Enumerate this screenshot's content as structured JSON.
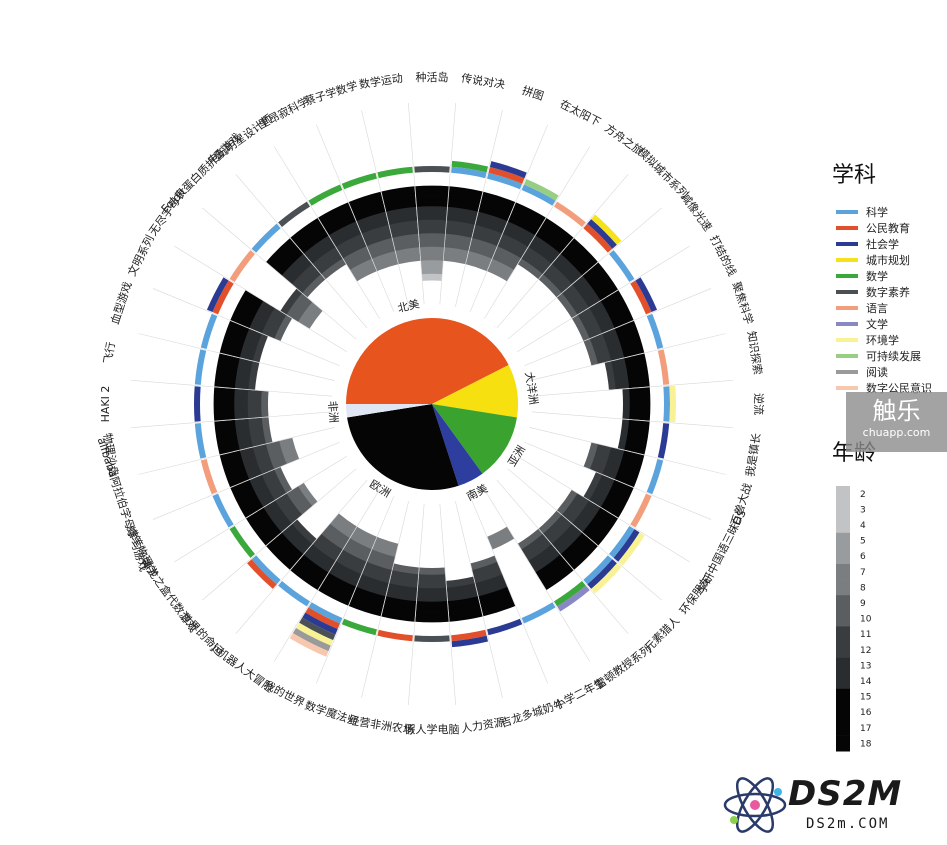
{
  "chart_data": {
    "type": "radial",
    "games": [
      {
        "label": "传说对决",
        "age_from": 7,
        "age_to": 18,
        "subjects": [
          "科学",
          "数学"
        ]
      },
      {
        "label": "拼图",
        "age_from": 7,
        "age_to": 18,
        "subjects": [
          "科学",
          "公民教育",
          "社会学"
        ]
      },
      {
        "label": "在太阳下",
        "age_from": 7,
        "age_to": 18,
        "subjects": [
          "科学",
          "可持续发展"
        ]
      },
      {
        "label": "方舟之旅",
        "age_from": 10,
        "age_to": 18,
        "subjects": [
          "语言"
        ]
      },
      {
        "label": "模拟城市系列",
        "age_from": 10,
        "age_to": 18,
        "subjects": [
          "公民教育",
          "社会学",
          "城市规划"
        ]
      },
      {
        "label": "减像光速",
        "age_from": 10,
        "age_to": 18,
        "subjects": [
          "科学"
        ]
      },
      {
        "label": "打结的线",
        "age_from": 10,
        "age_to": 18,
        "subjects": [
          "公民教育",
          "社会学"
        ]
      },
      {
        "label": "聚焦科学",
        "age_from": 10,
        "age_to": 18,
        "subjects": [
          "科学"
        ]
      },
      {
        "label": "知识探索",
        "age_from": 12,
        "age_to": 18,
        "subjects": [
          "语言"
        ]
      },
      {
        "label": "逆流",
        "age_from": 14,
        "age_to": 18,
        "subjects": [
          "科学",
          "环境学"
        ]
      },
      {
        "label": "我是镇长",
        "age_from": 14,
        "age_to": 18,
        "subjects": [
          "社会学"
        ]
      },
      {
        "label": "百兽大战",
        "age_from": 10,
        "age_to": 18,
        "subjects": [
          "科学"
        ]
      },
      {
        "label": "学研中国语三昧DS",
        "age_from": 12,
        "age_to": 18,
        "subjects": [
          "语言"
        ]
      },
      {
        "label": "环保朋友",
        "age_from": 10,
        "age_to": 18,
        "subjects": [
          "科学",
          "社会学",
          "环境学"
        ]
      },
      {
        "label": "元素猎人",
        "age_from": 10,
        "age_to": 18,
        "subjects": [
          "科学",
          "社会学",
          "环境学"
        ]
      },
      {
        "label": "雷顿教授系列",
        "age_from": 10,
        "age_to": 18,
        "subjects": [
          "数学",
          "文学"
        ]
      },
      {
        "label": "小学二年生",
        "age_from": 7,
        "age_to": 9,
        "subjects": [
          "科学"
        ]
      },
      {
        "label": "吉龙多城奶牛",
        "age_from": 10,
        "age_to": 18,
        "subjects": [
          "社会学"
        ]
      },
      {
        "label": "人力资源",
        "age_from": 12,
        "age_to": 18,
        "subjects": [
          "公民教育",
          "社会学"
        ]
      },
      {
        "label": "假人学电脑",
        "age_from": 10,
        "age_to": 18,
        "subjects": [
          "数字素养"
        ]
      },
      {
        "label": "经营非洲农场",
        "age_from": 10,
        "age_to": 18,
        "subjects": [
          "公民教育"
        ]
      },
      {
        "label": "数学魔法师",
        "age_from": 7,
        "age_to": 18,
        "subjects": [
          "数学"
        ]
      },
      {
        "label": "我的世界",
        "age_from": 7,
        "age_to": 18,
        "subjects": [
          "科学",
          "公民教育",
          "社会学",
          "数字素养",
          "环境学",
          "阅读",
          "数字公民意识"
        ]
      },
      {
        "label": "小机器人大冒险",
        "age_from": 7,
        "age_to": 18,
        "subjects": [
          "科学"
        ]
      },
      {
        "label": "世界的命运",
        "age_from": 12,
        "age_to": 18,
        "subjects": [
          "科学",
          "公民教育"
        ]
      },
      {
        "label": "神龙之盒代数游戏",
        "age_from": 8,
        "age_to": 18,
        "subjects": [
          "数学"
        ]
      },
      {
        "label": "蜡笔物理学",
        "age_from": 10,
        "age_to": 18,
        "subjects": [
          "科学"
        ]
      },
      {
        "label": "alfbaba阿拉伯字母学习游戏",
        "age_from": 7,
        "age_to": 18,
        "subjects": [
          "语言"
        ]
      },
      {
        "label": "物理沙盘",
        "age_from": 10,
        "age_to": 18,
        "subjects": [
          "科学"
        ]
      },
      {
        "label": "HAKI 2",
        "age_from": 10,
        "age_to": 18,
        "subjects": [
          "社会学"
        ]
      },
      {
        "label": "飞行",
        "age_from": 12,
        "age_to": 18,
        "subjects": [
          "科学"
        ]
      },
      {
        "label": "血型游戏",
        "age_from": 12,
        "age_to": 18,
        "subjects": [
          "科学"
        ]
      },
      {
        "label": "文明系列",
        "age_from": 10,
        "age_to": 18,
        "subjects": [
          "公民教育",
          "社会学"
        ]
      },
      {
        "label": "无尽字母表",
        "age_from": 7,
        "age_to": 12,
        "subjects": [
          "语言"
        ]
      },
      {
        "label": "Foldit蛋白质折叠游戏",
        "age_from": 10,
        "age_to": 18,
        "subjects": [
          "科学"
        ]
      },
      {
        "label": "电玩明星设计师",
        "age_from": 10,
        "age_to": 18,
        "subjects": [
          "数字素养"
        ]
      },
      {
        "label": "里昂寂科学",
        "age_from": 7,
        "age_to": 18,
        "subjects": [
          "数学"
        ]
      },
      {
        "label": "蔡子学数学",
        "age_from": 7,
        "age_to": 18,
        "subjects": [
          "数学"
        ]
      },
      {
        "label": "数学运动",
        "age_from": 7,
        "age_to": 18,
        "subjects": [
          "数学"
        ]
      },
      {
        "label": "种活岛",
        "age_from": 4,
        "age_to": 18,
        "subjects": [
          "数字素养"
        ]
      }
    ],
    "regions": [
      {
        "label": "北美",
        "value": 17,
        "color": "#e8541e"
      },
      {
        "label": "大洋洲",
        "value": 4,
        "color": "#f7e00f"
      },
      {
        "label": "亚洲",
        "value": 5,
        "color": "#3aa32f"
      },
      {
        "label": "南美",
        "value": 2,
        "color": "#2d3e9e"
      },
      {
        "label": "欧洲",
        "value": 11,
        "color": "#050505"
      },
      {
        "label": "非洲",
        "value": 1,
        "color": "#dfe7f4"
      }
    ],
    "legend_subjects": {
      "title": "学科",
      "items": [
        {
          "label": "科学",
          "color": "#5ba3dc"
        },
        {
          "label": "公民教育",
          "color": "#e2502b"
        },
        {
          "label": "社会学",
          "color": "#2b3b94"
        },
        {
          "label": "城市规划",
          "color": "#f6e21a"
        },
        {
          "label": "数学",
          "color": "#3aa83a"
        },
        {
          "label": "数字素养",
          "color": "#4b5055"
        },
        {
          "label": "语言",
          "color": "#f29e7c"
        },
        {
          "label": "文学",
          "color": "#8987c4"
        },
        {
          "label": "环境学",
          "color": "#f8f294"
        },
        {
          "label": "可持续发展",
          "color": "#98ce83"
        },
        {
          "label": "阅读",
          "color": "#9a9a9a"
        },
        {
          "label": "数字公民意识",
          "color": "#f8c8ae"
        }
      ]
    },
    "legend_age": {
      "title": "年龄",
      "ticks": [
        "2",
        "3",
        "4",
        "5",
        "6",
        "7",
        "8",
        "9",
        "10",
        "11",
        "12",
        "13",
        "14",
        "15",
        "16",
        "17",
        "18"
      ]
    }
  },
  "watermarks": {
    "chuapp_title": "触乐",
    "chuapp_url": "chuapp.com",
    "ds2m_title": "DS2M",
    "ds2m_url": "DS2m.COM"
  }
}
